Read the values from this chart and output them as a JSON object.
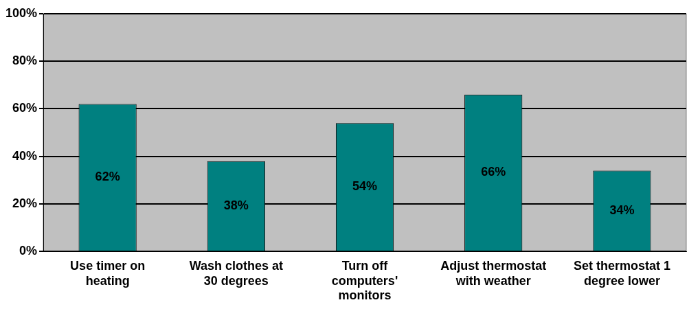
{
  "chart_data": {
    "type": "bar",
    "categories": [
      "Use timer on heating",
      "Wash clothes at 30 degrees",
      "Turn off computers' monitors",
      "Adjust thermostat with weather",
      "Set thermostat 1 degree lower"
    ],
    "values": [
      62,
      38,
      54,
      66,
      34
    ],
    "color": "#008080",
    "ylim": [
      0,
      100
    ],
    "yticks": [
      {
        "value": 0,
        "label": "0%"
      },
      {
        "value": 20,
        "label": "20%"
      },
      {
        "value": 40,
        "label": "40%"
      },
      {
        "value": 60,
        "label": "60%"
      },
      {
        "value": 80,
        "label": "80%"
      },
      {
        "value": 100,
        "label": "100%"
      }
    ],
    "value_labels": [
      "62%",
      "38%",
      "54%",
      "66%",
      "34%"
    ],
    "grid": "y",
    "legend": false
  }
}
